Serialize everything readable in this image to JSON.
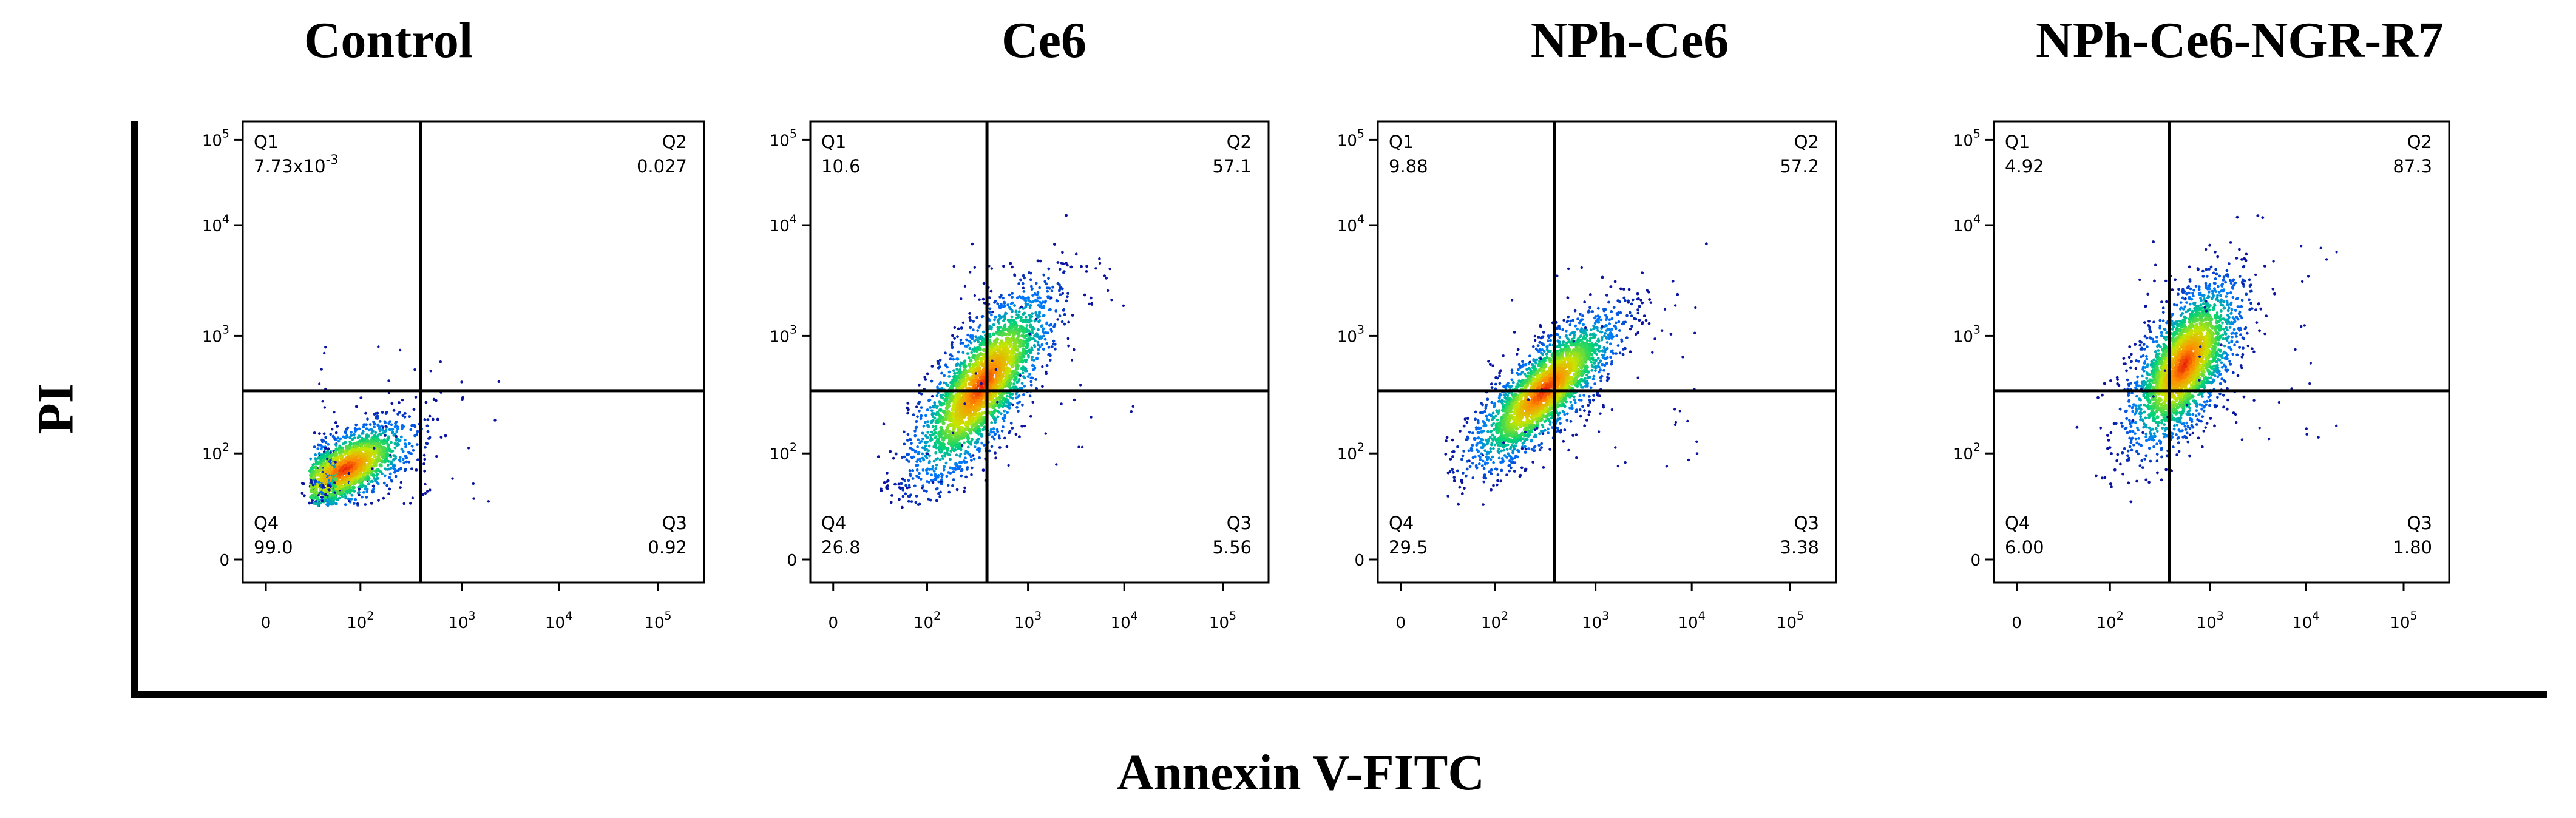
{
  "figure": {
    "y_axis_label": "PI",
    "x_axis_label": "Annexin V-FITC"
  },
  "chart_data": [
    {
      "type": "scatter",
      "title": "Control",
      "xlabel": "Annexin V-FITC",
      "ylabel": "PI",
      "x_ticks": [
        "0",
        "10^2",
        "10^3",
        "10^4",
        "10^5"
      ],
      "y_ticks": [
        "0",
        "10^2",
        "10^3",
        "10^4",
        "10^5"
      ],
      "quadrants": {
        "Q1": {
          "label": "Q1",
          "value": "7.73x10^-3"
        },
        "Q2": {
          "label": "Q2",
          "value": "0.027"
        },
        "Q3": {
          "label": "Q3",
          "value": "0.92"
        },
        "Q4": {
          "label": "Q4",
          "value": "99.0"
        }
      },
      "gate_log": {
        "x": 2.6,
        "y": 2.6
      },
      "cluster": {
        "cx": 1.85,
        "cy": 1.85,
        "sx": 0.38,
        "sy": 0.16,
        "angle": 28,
        "n": 1400
      }
    },
    {
      "type": "scatter",
      "title": "Ce6",
      "xlabel": "Annexin V-FITC",
      "ylabel": "PI",
      "x_ticks": [
        "0",
        "10^2",
        "10^3",
        "10^4",
        "10^5"
      ],
      "y_ticks": [
        "0",
        "10^2",
        "10^3",
        "10^4",
        "10^5"
      ],
      "quadrants": {
        "Q1": {
          "label": "Q1",
          "value": "10.6"
        },
        "Q2": {
          "label": "Q2",
          "value": "57.1"
        },
        "Q3": {
          "label": "Q3",
          "value": "5.56"
        },
        "Q4": {
          "label": "Q4",
          "value": "26.8"
        }
      },
      "gate_log": {
        "x": 2.6,
        "y": 2.6
      },
      "cluster": {
        "cx": 2.55,
        "cy": 2.65,
        "sx": 0.55,
        "sy": 0.2,
        "angle": 55,
        "n": 2200
      }
    },
    {
      "type": "scatter",
      "title": "NPh-Ce6",
      "xlabel": "Annexin V-FITC",
      "ylabel": "PI",
      "x_ticks": [
        "0",
        "10^2",
        "10^3",
        "10^4",
        "10^5"
      ],
      "y_ticks": [
        "0",
        "10^2",
        "10^3",
        "10^4",
        "10^5"
      ],
      "quadrants": {
        "Q1": {
          "label": "Q1",
          "value": "9.88"
        },
        "Q2": {
          "label": "Q2",
          "value": "57.2"
        },
        "Q3": {
          "label": "Q3",
          "value": "3.38"
        },
        "Q4": {
          "label": "Q4",
          "value": "29.5"
        }
      },
      "gate_log": {
        "x": 2.6,
        "y": 2.6
      },
      "cluster": {
        "cx": 2.5,
        "cy": 2.6,
        "sx": 0.5,
        "sy": 0.17,
        "angle": 45,
        "n": 2000
      }
    },
    {
      "type": "scatter",
      "title": "NPh-Ce6-NGR-R7",
      "xlabel": "Annexin V-FITC",
      "ylabel": "PI",
      "x_ticks": [
        "0",
        "10^2",
        "10^3",
        "10^4",
        "10^5"
      ],
      "y_ticks": [
        "0",
        "10^2",
        "10^3",
        "10^4",
        "10^5"
      ],
      "quadrants": {
        "Q1": {
          "label": "Q1",
          "value": "4.92"
        },
        "Q2": {
          "label": "Q2",
          "value": "87.3"
        },
        "Q3": {
          "label": "Q3",
          "value": "1.80"
        },
        "Q4": {
          "label": "Q4",
          "value": "6.00"
        }
      },
      "gate_log": {
        "x": 2.6,
        "y": 2.6
      },
      "cluster": {
        "cx": 2.75,
        "cy": 2.85,
        "sx": 0.45,
        "sy": 0.2,
        "angle": 60,
        "n": 2100
      }
    }
  ]
}
